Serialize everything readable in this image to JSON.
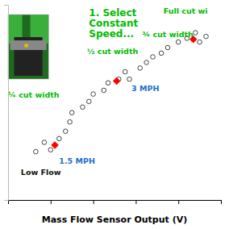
{
  "chart_data": {
    "type": "scatter",
    "x_label": "Mass Flow Sensor Output (V)",
    "series": [
      {
        "color": "#444444",
        "marker": "circle",
        "x": [
          0.13,
          0.17,
          0.2,
          0.24,
          0.27,
          0.29,
          0.3,
          0.35,
          0.38,
          0.4,
          0.45,
          0.47,
          0.52,
          0.55,
          0.57,
          0.62,
          0.65,
          0.68,
          0.72,
          0.75,
          0.8,
          0.84,
          0.88,
          0.9,
          0.93
        ],
        "values": [
          0.26,
          0.31,
          0.27,
          0.33,
          0.37,
          0.42,
          0.47,
          0.5,
          0.53,
          0.57,
          0.59,
          0.63,
          0.65,
          0.69,
          0.65,
          0.71,
          0.74,
          0.77,
          0.79,
          0.82,
          0.85,
          0.87,
          0.9,
          0.85,
          0.88
        ]
      },
      {
        "color": "red",
        "marker": "diamond",
        "x": [
          0.22,
          0.51,
          0.87
        ],
        "values": [
          0.295,
          0.64,
          0.865
        ]
      }
    ],
    "xlim": [
      0.0,
      1.0
    ],
    "ylim": [
      0.0,
      1.05
    ],
    "xticks": [
      0.2,
      0.4,
      0.6,
      0.8,
      1.0
    ],
    "yticks": [],
    "tick_labels": false,
    "grid": false,
    "annotations": [
      {
        "text": "1. Select\nConstant\nSpeed...",
        "color": "#00bb00"
      },
      {
        "text": "Full cut wi",
        "color": "#00bb00"
      },
      {
        "text": "¾ cut width",
        "color": "#00bb00"
      },
      {
        "text": "½ cut width",
        "color": "#00bb00"
      },
      {
        "text": "¼ cut width",
        "color": "#00bb00"
      },
      {
        "text": "3 MPH",
        "color": "#1e6fcc"
      },
      {
        "text": "1.5 MPH",
        "color": "#1e6fcc"
      },
      {
        "text": "Low Flow",
        "color": "#111111"
      }
    ]
  }
}
